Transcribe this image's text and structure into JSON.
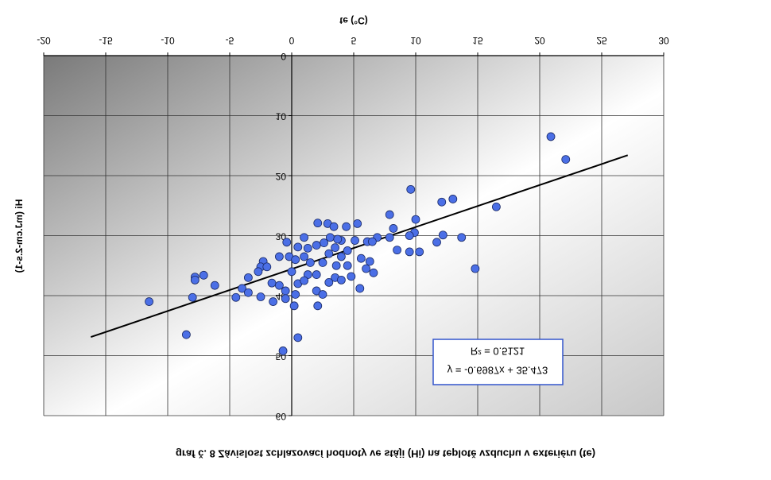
{
  "chart_data": {
    "type": "scatter",
    "title": "graf č. 8 Závislost zchlazovací hodnoty ve stáji (Hi) na teplotě vzduchu v exteriéru (te)",
    "x_label": "te (°C)",
    "y_label": "Hi (mJ.cm-2.s-1)",
    "xlim": [
      -20,
      30
    ],
    "xticks": [
      -20,
      -15,
      -10,
      -5,
      0,
      5,
      10,
      15,
      20,
      25,
      30
    ],
    "ylim": [
      0,
      60
    ],
    "yticks": [
      0,
      10,
      20,
      30,
      40,
      50,
      60
    ],
    "grid": true,
    "series": [
      {
        "color": "#4b6fe6",
        "x": [
          20.9,
          22.1,
          9.6,
          13.0,
          12.1,
          16.5,
          7.9,
          10.0,
          2.1,
          5.3,
          4.4,
          2.9,
          3.4,
          8.2,
          9.9,
          12.2,
          9.5,
          7.9,
          13.7,
          6.9,
          6.1,
          11.7,
          5.1,
          4.0,
          3.1,
          3.7,
          2.6,
          1.0,
          2.0,
          -0.4,
          0.5,
          1.3,
          3.5,
          4.5,
          6.5,
          8.5,
          9.5,
          10.3,
          -1.0,
          -0.2,
          1.0,
          3.0,
          4.0,
          5.6,
          6.3,
          -2.3,
          -2.5,
          -2.0,
          0.3,
          1.5,
          2.5,
          3.6,
          4.5,
          6.0,
          6.6,
          -2.7,
          -3.5,
          0.0,
          1.3,
          2.0,
          3.5,
          4.8,
          14.8,
          -7.1,
          -7.8,
          -7.8,
          -6.2,
          -1.6,
          -1.0,
          0.5,
          1.0,
          3.0,
          4.0,
          5.5,
          -4.0,
          -3.5,
          -0.5,
          0.3,
          2.0,
          2.5,
          -4.5,
          -8.0,
          -2.5,
          -1.5,
          -0.5,
          0.2,
          2.1,
          -11.5,
          -8.5,
          0.5,
          -0.7
        ],
        "values": [
          13.5,
          17.3,
          22.3,
          23.9,
          24.4,
          25.2,
          26.5,
          27.3,
          27.9,
          28,
          28.5,
          28,
          28.5,
          28.8,
          29.5,
          29.9,
          30,
          30.3,
          30.3,
          30.3,
          31,
          31.1,
          30.8,
          30.8,
          30.3,
          30.6,
          31.2,
          30.3,
          31.6,
          31.1,
          31.9,
          32.1,
          32,
          32.5,
          31,
          32.4,
          32.7,
          32.7,
          33.5,
          33.5,
          33.5,
          33,
          33.5,
          33.8,
          34.3,
          34.3,
          35.2,
          35.2,
          34,
          34.5,
          34.5,
          35,
          35,
          35.5,
          36.2,
          36,
          37,
          36,
          36.5,
          36.5,
          37,
          36.8,
          35.5,
          36.6,
          36.9,
          37.4,
          38.3,
          37.9,
          38.3,
          38,
          37.5,
          37.8,
          37.4,
          38.8,
          38.8,
          39.5,
          39.2,
          39.8,
          39.2,
          39.8,
          40.3,
          40.3,
          40.2,
          41,
          40.5,
          41.7,
          41.7,
          41,
          46.5,
          47,
          49.2
        ]
      }
    ],
    "trendline": {
      "color": "#000000",
      "x": [
        -16.2,
        27.1
      ],
      "values": [
        46.9,
        16.6
      ]
    },
    "annotations": [
      "y = -0.6987x + 35.473",
      "R² = 0.5121"
    ]
  }
}
